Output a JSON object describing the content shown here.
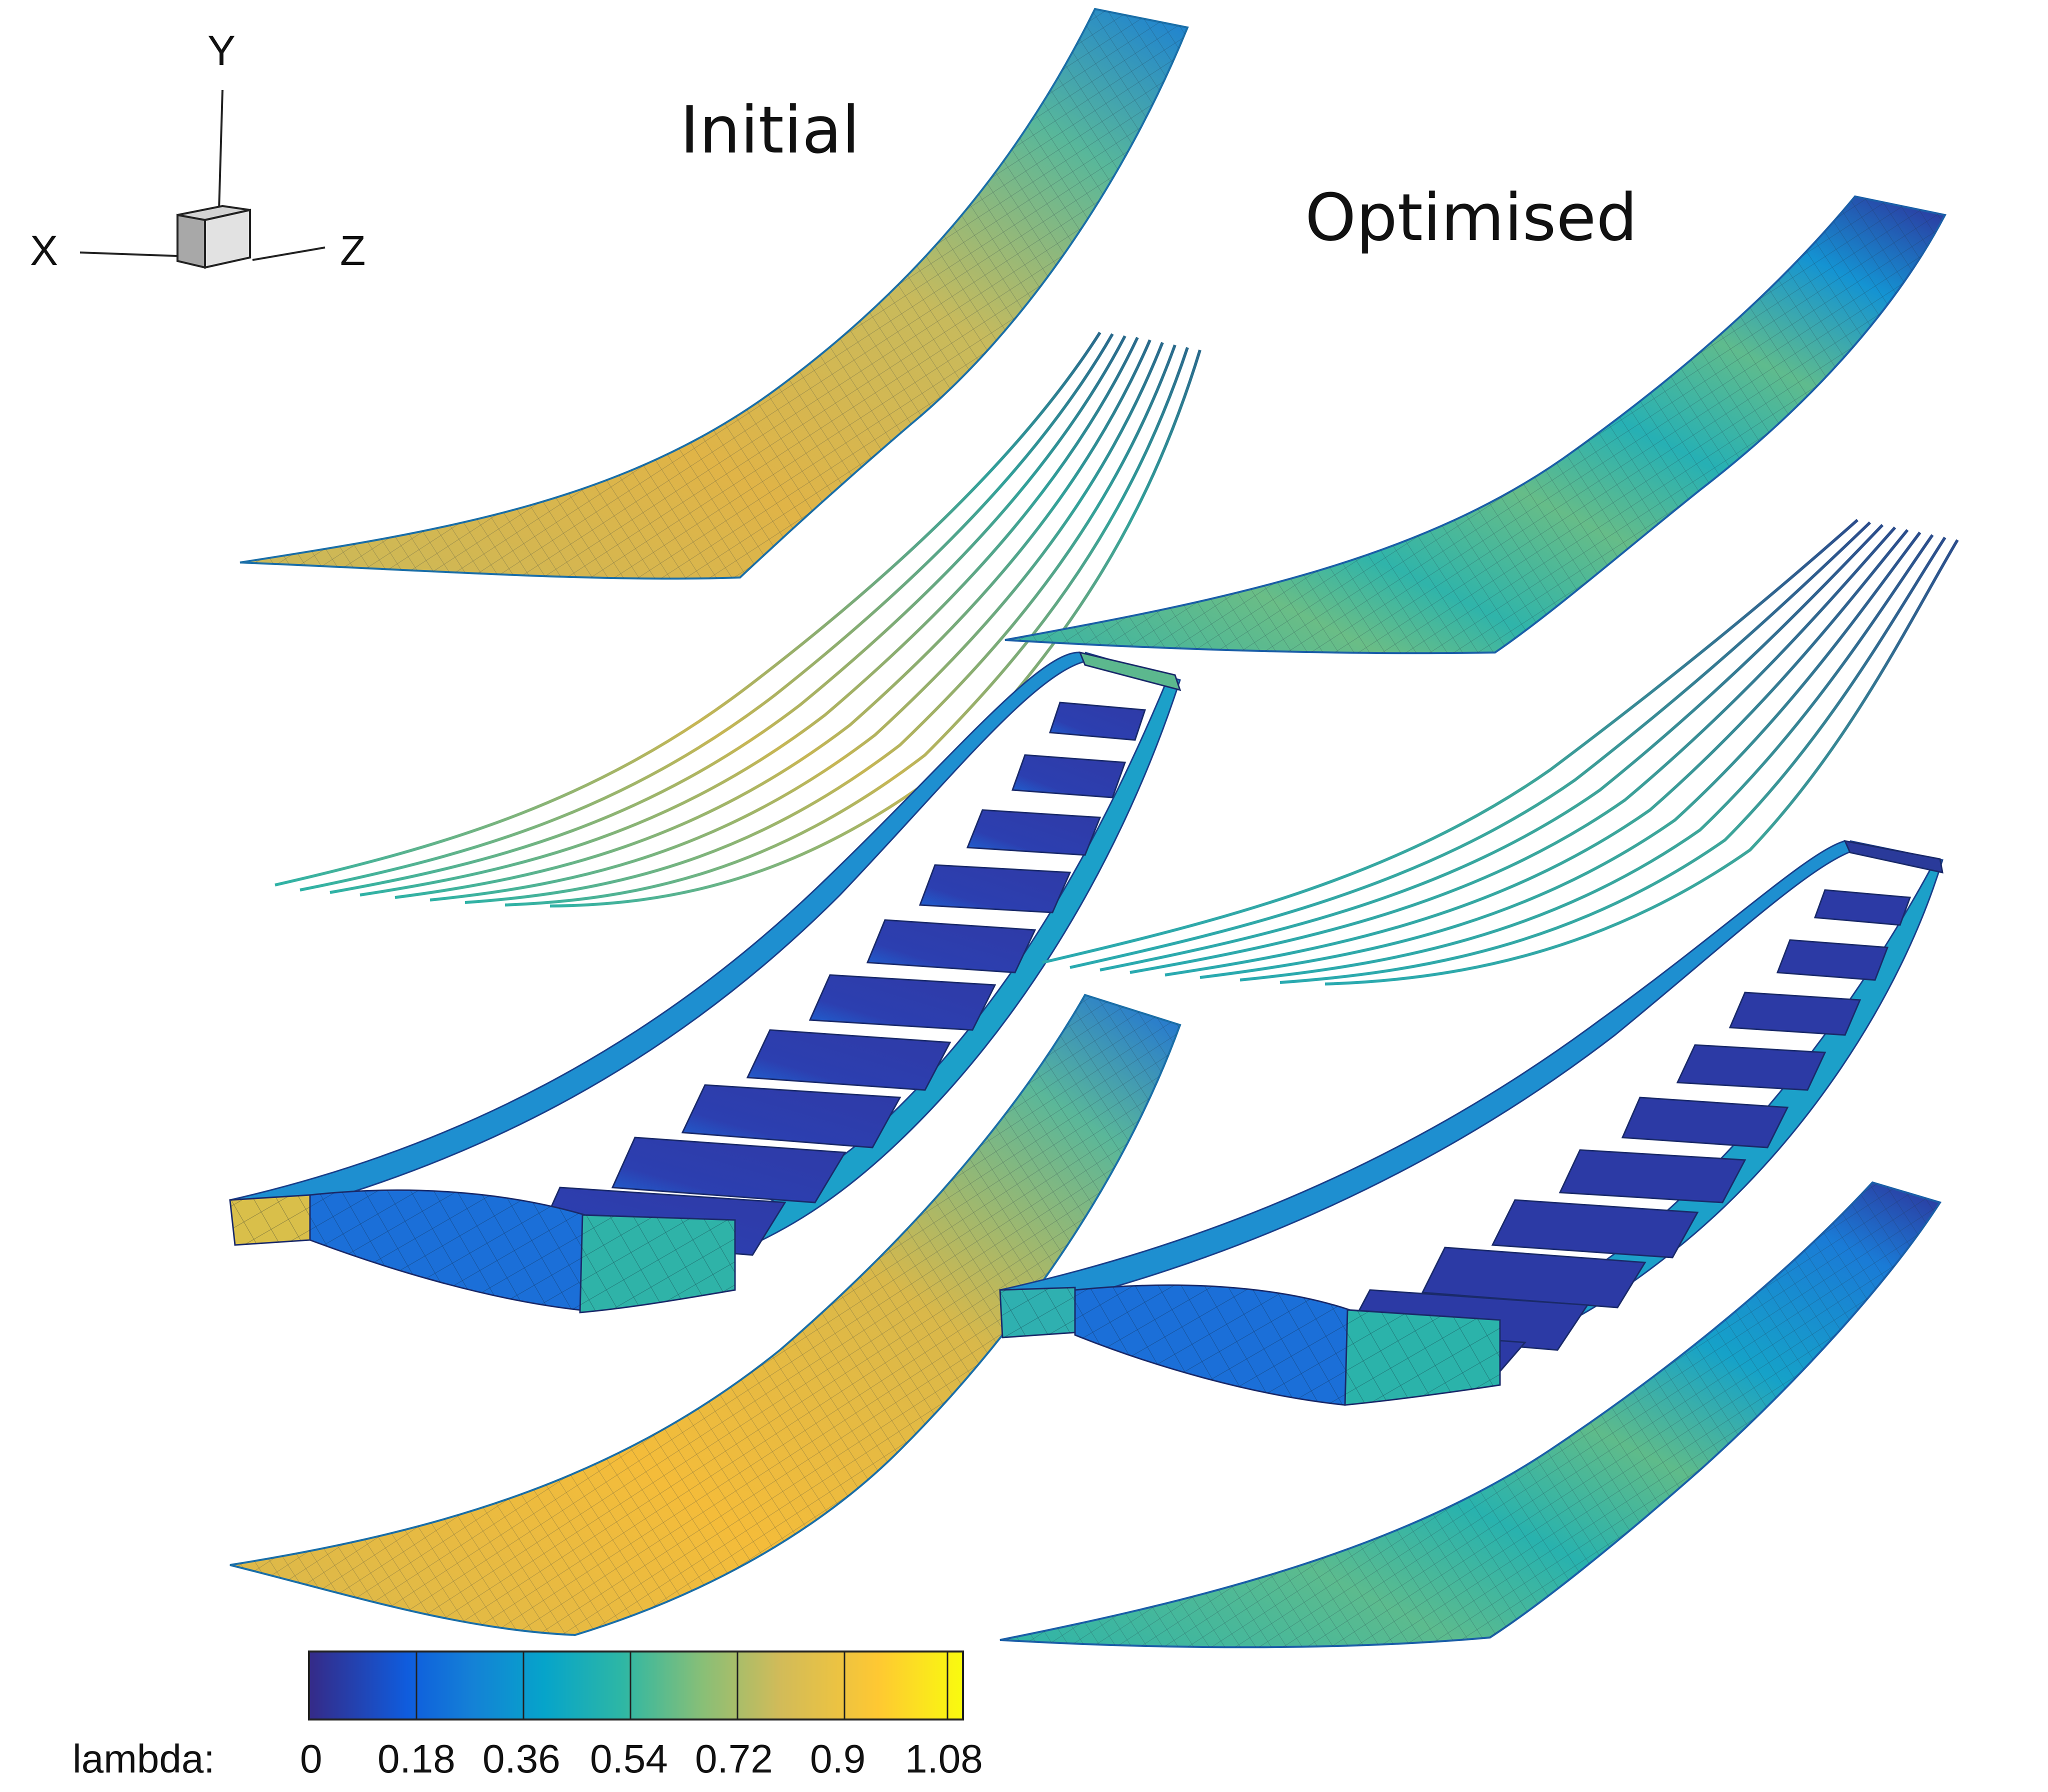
{
  "axes": {
    "x": "X",
    "y": "Y",
    "z": "Z"
  },
  "titles": {
    "initial": "Initial",
    "optimised": "Optimised"
  },
  "colorbar": {
    "label": "lambda:",
    "ticks": [
      "0",
      "0.18",
      "0.36",
      "0.54",
      "0.72",
      "0.9",
      "1.08"
    ],
    "min": 0,
    "max": 1.1,
    "colors": [
      "#352a87",
      "#0f5cdd",
      "#1481d6",
      "#06a4ca",
      "#2eb7a4",
      "#87bf77",
      "#d1bb59",
      "#fec832",
      "#f9fb0e"
    ]
  },
  "colors": {
    "initial_skin": "#d6b552",
    "optimised_skin": "#3fb5a0",
    "ribs": "#2b3ea8",
    "edge": "#1ea8c6",
    "stringer": "#3d8f86",
    "mesh_line": "#1a2a3a"
  }
}
